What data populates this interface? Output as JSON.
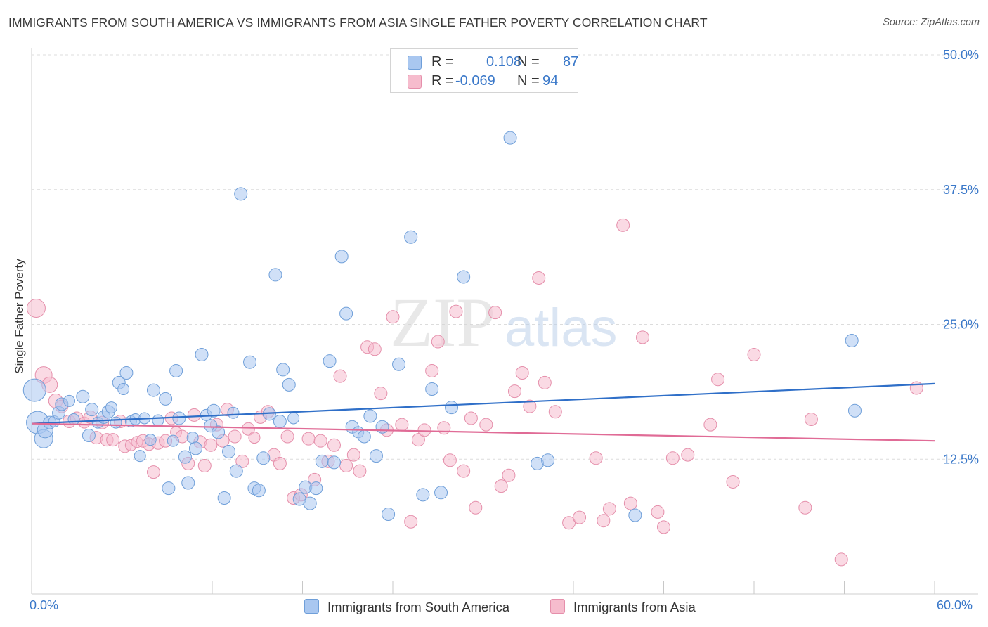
{
  "header": {
    "title": "IMMIGRANTS FROM SOUTH AMERICA VS IMMIGRANTS FROM ASIA SINGLE FATHER POVERTY CORRELATION CHART",
    "source": "Source: ZipAtlas.com"
  },
  "watermark": {
    "zip": "ZIP",
    "atlas": "atlas"
  },
  "stats": {
    "r_label": "R =",
    "n_label": "N =",
    "rows": [
      {
        "r": "0.108",
        "n": "87"
      },
      {
        "r": "-0.069",
        "n": "94"
      }
    ]
  },
  "colors": {
    "blue_fill": "#a9c7f0",
    "blue_stroke": "#6f9fd9",
    "blue_line": "#2f6fc8",
    "pink_fill": "#f6bccd",
    "pink_stroke": "#e58fab",
    "pink_line": "#e06b96",
    "tick_text": "#3a78c9"
  },
  "chart_data": {
    "type": "scatter",
    "title": "IMMIGRANTS FROM SOUTH AMERICA VS IMMIGRANTS FROM ASIA SINGLE FATHER POVERTY CORRELATION CHART",
    "xlabel": "",
    "ylabel": "Single Father Poverty",
    "xlim": [
      0,
      60
    ],
    "ylim": [
      0,
      50
    ],
    "x_tick_labels": [
      "0.0%",
      "60.0%"
    ],
    "y_ticks": [
      12.5,
      25.0,
      37.5,
      50.0
    ],
    "y_tick_labels": [
      "12.5%",
      "25.0%",
      "37.5%",
      "50.0%"
    ],
    "grid": "horizontal dashed",
    "legend_position": "bottom-center",
    "series": [
      {
        "name": "Immigrants from South America",
        "r": 0.108,
        "n": 87,
        "trend": {
          "x": [
            0,
            60
          ],
          "y": [
            15.8,
            19.5
          ]
        },
        "points": [
          [
            0.2,
            18.9,
            16
          ],
          [
            0.4,
            15.9,
            16
          ],
          [
            0.8,
            14.4,
            13
          ],
          [
            0.9,
            15.2,
            11
          ],
          [
            1.2,
            15.9,
            9
          ],
          [
            1.5,
            16.0,
            8
          ],
          [
            1.8,
            16.8,
            9
          ],
          [
            2.0,
            17.6,
            9
          ],
          [
            2.5,
            17.9,
            8
          ],
          [
            2.8,
            16.2,
            8
          ],
          [
            3.4,
            18.3,
            9
          ],
          [
            3.8,
            14.7,
            9
          ],
          [
            4.0,
            17.1,
            9
          ],
          [
            4.4,
            15.9,
            8
          ],
          [
            4.8,
            16.4,
            9
          ],
          [
            5.1,
            16.9,
            9
          ],
          [
            5.3,
            17.3,
            8
          ],
          [
            5.6,
            15.9,
            8
          ],
          [
            5.8,
            19.6,
            9
          ],
          [
            6.1,
            19.0,
            8
          ],
          [
            6.3,
            20.5,
            9
          ],
          [
            6.6,
            16.0,
            8
          ],
          [
            6.9,
            16.2,
            8
          ],
          [
            7.2,
            12.8,
            8
          ],
          [
            7.5,
            16.3,
            8
          ],
          [
            7.9,
            14.3,
            8
          ],
          [
            8.1,
            18.9,
            9
          ],
          [
            8.4,
            16.1,
            8
          ],
          [
            8.9,
            18.1,
            9
          ],
          [
            9.1,
            9.8,
            9
          ],
          [
            9.4,
            14.2,
            8
          ],
          [
            9.6,
            20.7,
            9
          ],
          [
            9.8,
            16.3,
            9
          ],
          [
            10.2,
            12.7,
            9
          ],
          [
            10.4,
            10.3,
            9
          ],
          [
            10.7,
            14.5,
            8
          ],
          [
            10.9,
            13.5,
            9
          ],
          [
            11.3,
            22.2,
            9
          ],
          [
            11.6,
            16.6,
            8
          ],
          [
            11.9,
            15.6,
            9
          ],
          [
            12.1,
            17.0,
            9
          ],
          [
            12.4,
            15.0,
            9
          ],
          [
            12.8,
            8.9,
            9
          ],
          [
            13.1,
            13.2,
            9
          ],
          [
            13.4,
            16.8,
            8
          ],
          [
            13.6,
            11.4,
            9
          ],
          [
            13.9,
            37.1,
            9
          ],
          [
            14.5,
            21.5,
            9
          ],
          [
            14.8,
            9.8,
            9
          ],
          [
            15.1,
            9.6,
            9
          ],
          [
            15.4,
            12.6,
            9
          ],
          [
            15.8,
            16.7,
            9
          ],
          [
            16.2,
            29.6,
            9
          ],
          [
            16.5,
            16.0,
            9
          ],
          [
            16.7,
            20.8,
            9
          ],
          [
            17.1,
            19.4,
            9
          ],
          [
            17.4,
            16.3,
            8
          ],
          [
            17.8,
            8.8,
            9
          ],
          [
            18.2,
            9.9,
            9
          ],
          [
            18.5,
            8.4,
            9
          ],
          [
            18.9,
            9.8,
            9
          ],
          [
            19.3,
            12.3,
            9
          ],
          [
            19.8,
            21.6,
            9
          ],
          [
            20.1,
            12.2,
            9
          ],
          [
            20.6,
            31.3,
            9
          ],
          [
            20.9,
            26.0,
            9
          ],
          [
            21.3,
            15.5,
            9
          ],
          [
            21.7,
            15.0,
            8
          ],
          [
            22.1,
            14.6,
            9
          ],
          [
            22.5,
            16.5,
            9
          ],
          [
            22.9,
            12.8,
            9
          ],
          [
            23.3,
            15.5,
            9
          ],
          [
            23.7,
            7.4,
            9
          ],
          [
            24.4,
            21.3,
            9
          ],
          [
            25.2,
            33.1,
            9
          ],
          [
            26.0,
            9.2,
            9
          ],
          [
            26.6,
            19.0,
            9
          ],
          [
            27.2,
            9.4,
            9
          ],
          [
            27.9,
            17.3,
            9
          ],
          [
            28.7,
            29.4,
            9
          ],
          [
            31.8,
            42.3,
            9
          ],
          [
            33.6,
            12.1,
            9
          ],
          [
            34.3,
            12.4,
            9
          ],
          [
            40.1,
            7.3,
            9
          ],
          [
            54.5,
            23.5,
            9
          ],
          [
            54.7,
            17.0,
            9
          ]
        ]
      },
      {
        "name": "Immigrants from Asia",
        "r": -0.069,
        "n": 94,
        "trend": {
          "x": [
            0,
            60
          ],
          "y": [
            15.8,
            14.2
          ]
        },
        "points": [
          [
            0.3,
            26.5,
            13
          ],
          [
            0.8,
            20.3,
            12
          ],
          [
            1.2,
            19.4,
            11
          ],
          [
            1.6,
            17.9,
            10
          ],
          [
            2.0,
            17.4,
            9
          ],
          [
            2.5,
            16.0,
            9
          ],
          [
            3.0,
            16.3,
            9
          ],
          [
            3.5,
            15.9,
            8
          ],
          [
            3.9,
            16.4,
            9
          ],
          [
            4.3,
            14.5,
            9
          ],
          [
            4.7,
            15.9,
            9
          ],
          [
            5.0,
            14.3,
            9
          ],
          [
            5.4,
            14.3,
            9
          ],
          [
            5.9,
            16.0,
            9
          ],
          [
            6.2,
            13.7,
            9
          ],
          [
            6.6,
            13.8,
            8
          ],
          [
            7.0,
            14.1,
            8
          ],
          [
            7.4,
            14.2,
            9
          ],
          [
            7.8,
            13.9,
            9
          ],
          [
            8.1,
            11.3,
            9
          ],
          [
            8.4,
            14.0,
            9
          ],
          [
            8.9,
            14.2,
            9
          ],
          [
            9.3,
            16.3,
            9
          ],
          [
            9.6,
            15.0,
            8
          ],
          [
            10.0,
            14.6,
            9
          ],
          [
            10.4,
            12.1,
            9
          ],
          [
            10.8,
            16.6,
            9
          ],
          [
            11.2,
            14.1,
            9
          ],
          [
            11.5,
            11.9,
            9
          ],
          [
            11.9,
            13.8,
            9
          ],
          [
            12.3,
            15.7,
            9
          ],
          [
            12.7,
            14.2,
            9
          ],
          [
            13.0,
            17.1,
            9
          ],
          [
            13.5,
            14.6,
            9
          ],
          [
            14.0,
            12.3,
            9
          ],
          [
            14.4,
            15.3,
            9
          ],
          [
            14.8,
            14.5,
            8
          ],
          [
            15.2,
            16.4,
            9
          ],
          [
            15.7,
            16.9,
            9
          ],
          [
            16.1,
            12.9,
            9
          ],
          [
            16.5,
            12.1,
            9
          ],
          [
            17.0,
            14.6,
            9
          ],
          [
            17.4,
            8.9,
            9
          ],
          [
            17.9,
            9.2,
            9
          ],
          [
            18.4,
            14.4,
            9
          ],
          [
            18.8,
            10.6,
            9
          ],
          [
            19.2,
            14.2,
            9
          ],
          [
            19.7,
            12.3,
            9
          ],
          [
            20.1,
            13.8,
            9
          ],
          [
            20.5,
            20.2,
            9
          ],
          [
            20.9,
            11.9,
            9
          ],
          [
            21.4,
            12.9,
            9
          ],
          [
            21.8,
            11.4,
            9
          ],
          [
            22.3,
            22.9,
            9
          ],
          [
            22.8,
            22.7,
            9
          ],
          [
            23.2,
            18.6,
            9
          ],
          [
            23.6,
            15.2,
            9
          ],
          [
            24.0,
            25.7,
            9
          ],
          [
            24.6,
            15.7,
            9
          ],
          [
            25.2,
            6.7,
            9
          ],
          [
            25.7,
            14.3,
            9
          ],
          [
            26.1,
            15.2,
            9
          ],
          [
            26.6,
            20.7,
            9
          ],
          [
            27.0,
            23.4,
            9
          ],
          [
            27.4,
            15.4,
            9
          ],
          [
            27.8,
            12.4,
            9
          ],
          [
            28.2,
            26.2,
            9
          ],
          [
            28.7,
            11.4,
            9
          ],
          [
            29.2,
            16.3,
            9
          ],
          [
            29.5,
            8.0,
            9
          ],
          [
            30.2,
            15.7,
            9
          ],
          [
            30.8,
            26.1,
            9
          ],
          [
            31.2,
            10.0,
            9
          ],
          [
            31.7,
            11.0,
            9
          ],
          [
            32.1,
            18.8,
            9
          ],
          [
            32.6,
            20.5,
            9
          ],
          [
            33.1,
            17.4,
            9
          ],
          [
            33.7,
            29.3,
            9
          ],
          [
            34.1,
            19.6,
            9
          ],
          [
            34.8,
            16.9,
            9
          ],
          [
            35.7,
            6.6,
            9
          ],
          [
            36.4,
            7.1,
            9
          ],
          [
            37.5,
            12.6,
            9
          ],
          [
            38.0,
            6.8,
            9
          ],
          [
            38.4,
            7.9,
            9
          ],
          [
            39.3,
            34.2,
            9
          ],
          [
            39.8,
            8.4,
            9
          ],
          [
            40.6,
            23.8,
            9
          ],
          [
            41.6,
            7.6,
            9
          ],
          [
            42.0,
            6.2,
            9
          ],
          [
            42.6,
            12.6,
            9
          ],
          [
            43.6,
            12.9,
            9
          ],
          [
            45.1,
            15.7,
            9
          ],
          [
            45.6,
            19.9,
            9
          ],
          [
            46.6,
            10.4,
            9
          ],
          [
            48.0,
            22.2,
            9
          ],
          [
            51.4,
            8.0,
            9
          ],
          [
            51.8,
            16.2,
            9
          ],
          [
            53.8,
            3.2,
            9
          ],
          [
            58.8,
            19.1,
            9
          ]
        ]
      }
    ]
  },
  "legend": {
    "items": [
      {
        "label": "Immigrants from South America"
      },
      {
        "label": "Immigrants from Asia"
      }
    ]
  }
}
